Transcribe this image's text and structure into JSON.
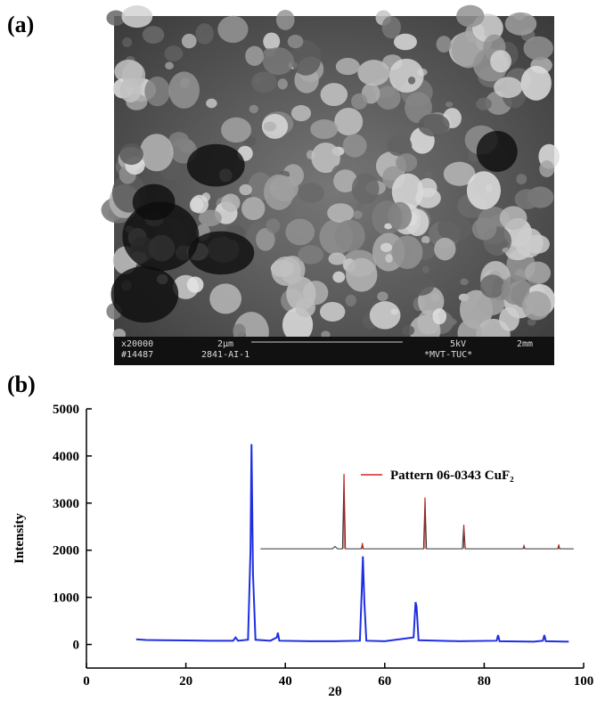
{
  "panel_a": {
    "label": "(a)",
    "overlay": [
      "x20000",
      "2µm",
      "5kV",
      "2mm",
      "#14487",
      "2841-AI-1",
      "*MVT-TUC*"
    ]
  },
  "panel_b": {
    "label": "(b)"
  },
  "chart_data": {
    "type": "line",
    "xlabel": "2θ",
    "ylabel": "Intensity",
    "xlim": [
      0,
      100
    ],
    "xticks": [
      0,
      20,
      40,
      60,
      80,
      100
    ],
    "ylim": [
      -500,
      5000
    ],
    "yticks": [
      0,
      1000,
      2000,
      3000,
      4000,
      5000
    ],
    "legend": "upper right",
    "series": [
      {
        "color": "#1f2fe0",
        "x": [
          10,
          12,
          15,
          20,
          25,
          29.5,
          30,
          30.5,
          32.5,
          33,
          33.2,
          33.5,
          34,
          37,
          38.3,
          38.5,
          38.8,
          45,
          50,
          55,
          55.4,
          55.6,
          55.9,
          56.3,
          60,
          65.8,
          66.2,
          66.4,
          66.8,
          75,
          82.5,
          82.8,
          83.1,
          90,
          91.8,
          92.1,
          92.4,
          97
        ],
        "values": [
          110,
          95,
          90,
          85,
          80,
          80,
          150,
          80,
          100,
          2000,
          4250,
          1500,
          100,
          80,
          150,
          250,
          80,
          70,
          70,
          80,
          1200,
          1870,
          900,
          80,
          70,
          150,
          900,
          800,
          90,
          70,
          80,
          200,
          70,
          60,
          80,
          200,
          70,
          60
        ]
      },
      {
        "color": "#333333",
        "x": [
          35,
          45,
          49.5,
          50,
          50.5,
          51.5,
          51.8,
          52.1,
          55.3,
          55.5,
          55.7,
          60,
          67.8,
          68.1,
          68.4,
          75.6,
          75.9,
          76.2,
          87.8,
          88,
          88.2,
          94.8,
          95,
          95.2,
          98
        ],
        "values": [
          2030,
          2030,
          2030,
          2080,
          2030,
          2030,
          3620,
          2030,
          2030,
          2150,
          2030,
          2030,
          2030,
          3120,
          2030,
          2030,
          2540,
          2030,
          2030,
          2100,
          2030,
          2030,
          2120,
          2030,
          2030
        ]
      },
      {
        "name": "Pattern 06-0343 CuF₂",
        "color": "#d62020",
        "type": "stick",
        "x": [
          51.8,
          55.5,
          68.1,
          75.9,
          88,
          95
        ],
        "values": [
          3620,
          2150,
          3120,
          2540,
          2100,
          2120
        ]
      }
    ]
  }
}
